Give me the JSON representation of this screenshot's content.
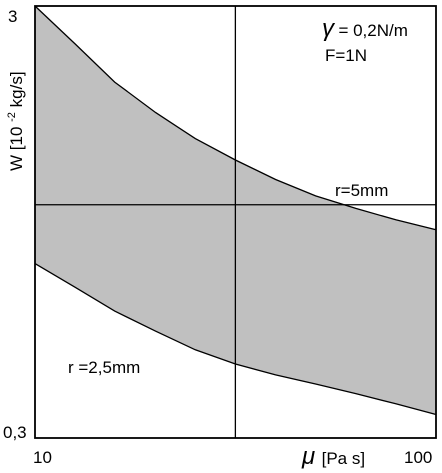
{
  "chart_data": {
    "type": "area",
    "title": "",
    "x_scale": "log",
    "y_scale": "log",
    "xlim": [
      10,
      100
    ],
    "ylim": [
      0.3,
      3
    ],
    "x_ticks": [
      {
        "value": 10,
        "label": "10"
      },
      {
        "value": 100,
        "label": "100"
      }
    ],
    "y_ticks": [
      {
        "value": 3,
        "label": "3"
      },
      {
        "value": 0.3,
        "label": "0,3"
      }
    ],
    "xlabel": {
      "symbol": "μ",
      "unit": "[Pa s]"
    },
    "ylabel": {
      "prefix": "W [10",
      "exp": "-2",
      "suffix": " kg/s]"
    },
    "grid": {
      "x": [
        31.6
      ],
      "y": [
        1.04
      ]
    },
    "fill_color": "#c0c0c0",
    "line_color": "#000000",
    "parameters": {
      "gamma": {
        "symbol": "γ",
        "value": " = 0,2N/m"
      },
      "force": "F=1N"
    },
    "series": [
      {
        "name": "r=5mm",
        "role": "upper",
        "x": [
          10,
          12.6,
          15.8,
          20,
          25.1,
          31.6,
          39.8,
          50.1,
          63.1,
          79.4,
          100
        ],
        "values": [
          3.0,
          2.45,
          2.0,
          1.7,
          1.48,
          1.32,
          1.19,
          1.09,
          1.02,
          0.96,
          0.91
        ]
      },
      {
        "name": "r =2,5mm",
        "role": "lower",
        "x": [
          10,
          12.6,
          15.8,
          20,
          25.1,
          31.6,
          39.8,
          50.1,
          63.1,
          79.4,
          100
        ],
        "values": [
          0.76,
          0.67,
          0.59,
          0.53,
          0.48,
          0.445,
          0.42,
          0.4,
          0.38,
          0.36,
          0.34
        ]
      }
    ]
  }
}
